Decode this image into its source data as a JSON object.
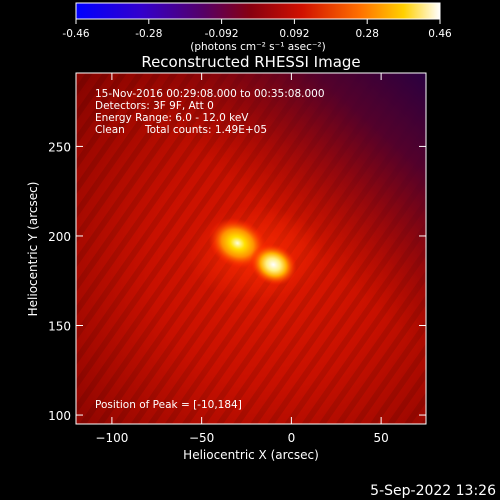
{
  "chart_data": {
    "type": "heatmap",
    "title": "Reconstructed RHESSI Image",
    "xlabel": "Heliocentric X (arcsec)",
    "ylabel": "Heliocentric Y (arcsec)",
    "xlim": [
      -120,
      75
    ],
    "ylim": [
      95,
      291
    ],
    "x_ticks": [
      -100,
      -50,
      0,
      50
    ],
    "y_ticks": [
      100,
      150,
      200,
      250
    ],
    "colorbar": {
      "ticks": [
        "-0.46",
        "-0.28",
        "-0.092",
        "0.092",
        "0.28",
        "0.46"
      ],
      "range": [
        -0.46,
        0.46
      ],
      "unit_label": "(photons cm⁻² s⁻¹ asec⁻²)",
      "colormap": "blue-purple-red-yellow-white"
    },
    "annotations": {
      "time": "15-Nov-2016 00:29:08.000 to 00:35:08.000",
      "detectors": "Detectors: 3F 9F, Att 0",
      "energy": "Energy Range: 6.0 - 12.0 keV",
      "method": "Clean",
      "counts": "Total counts: 1.49E+05",
      "peak": "Position of Peak = [-10,184]"
    },
    "sources": [
      {
        "x": -30,
        "y": 196,
        "peak": 0.4
      },
      {
        "x": -10,
        "y": 184,
        "peak": 0.46
      }
    ]
  },
  "footer": {
    "timestamp": "5-Sep-2022 13:26"
  }
}
